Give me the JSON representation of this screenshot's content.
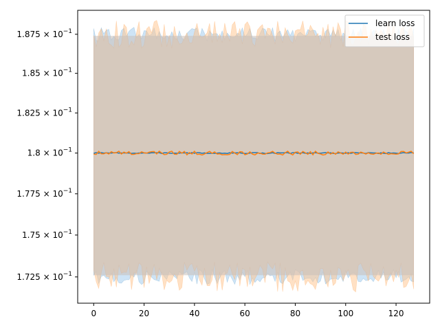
{
  "chart_data": {
    "type": "line",
    "title": "",
    "xlabel": "",
    "ylabel": "",
    "xlim": [
      -6.35,
      133.35
    ],
    "ylim": [
      0.17095,
      0.18905
    ],
    "yscale": "log",
    "grid": false,
    "legend_position": "top-right",
    "x_ticks": [
      0,
      20,
      40,
      60,
      80,
      100,
      120
    ],
    "x_tick_labels": [
      "0",
      "20",
      "40",
      "60",
      "80",
      "100",
      "120"
    ],
    "y_ticks": [
      0.1725,
      0.175,
      0.1775,
      0.18,
      0.1825,
      0.185,
      0.1875
    ],
    "y_tick_labels": [
      {
        "mantissa": "1.725",
        "base": "10",
        "exp": "−1"
      },
      {
        "mantissa": "1.75",
        "base": "10",
        "exp": "−1"
      },
      {
        "mantissa": "1.775",
        "base": "10",
        "exp": "−1"
      },
      {
        "mantissa": "1.8",
        "base": "10",
        "exp": "−1"
      },
      {
        "mantissa": "1.825",
        "base": "10",
        "exp": "−1"
      },
      {
        "mantissa": "1.85",
        "base": "10",
        "exp": "−1"
      },
      {
        "mantissa": "1.875",
        "base": "10",
        "exp": "−1"
      }
    ],
    "x_range": [
      0,
      127
    ],
    "series": [
      {
        "name": "learn loss",
        "color": "#1f77b4",
        "band_color": "#a6cdee",
        "mean_base": 0.18,
        "mean_jitter": 3e-05,
        "upper_base": 0.1875,
        "lower_base": 0.1725,
        "band_jitter": 0.00045,
        "seed": 7
      },
      {
        "name": "test loss",
        "color": "#ff7f0e",
        "band_color": "#ffc48c",
        "mean_base": 0.18,
        "mean_jitter": 0.00012,
        "upper_base": 0.1875,
        "lower_base": 0.1725,
        "band_jitter": 0.0009,
        "seed": 13
      }
    ]
  }
}
